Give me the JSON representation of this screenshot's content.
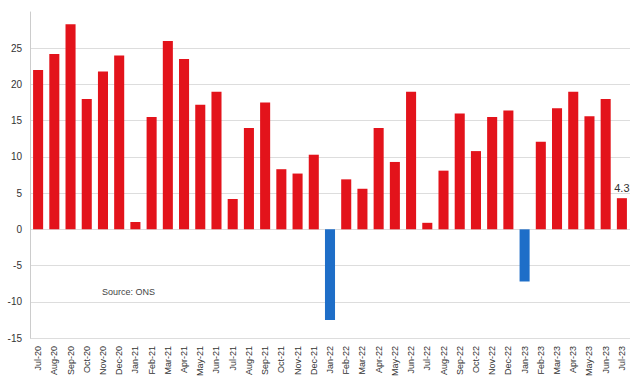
{
  "chart_data": {
    "type": "bar",
    "categories": [
      "Jul-20",
      "Aug-20",
      "Sep-20",
      "Oct-20",
      "Nov-20",
      "Dec-20",
      "Jan-21",
      "Feb-21",
      "Mar-21",
      "Apr-21",
      "May-21",
      "Jun-21",
      "Jul-21",
      "Aug-21",
      "Sep-21",
      "Oct-21",
      "Nov-21",
      "Dec-21",
      "Jan-22",
      "Feb-22",
      "Mar-22",
      "Apr-22",
      "May-22",
      "Jun-22",
      "Jul-22",
      "Aug-22",
      "Sep-22",
      "Oct-22",
      "Nov-22",
      "Dec-22",
      "Jan-23",
      "Feb-23",
      "Mar-23",
      "Apr-23",
      "May-23",
      "Jun-23",
      "Jul-23"
    ],
    "values": [
      22,
      24.2,
      28.3,
      18,
      21.8,
      24,
      1.0,
      15.5,
      26,
      23.5,
      17.2,
      19,
      4.2,
      14,
      17.5,
      8.3,
      7.7,
      10.3,
      -12.5,
      6.9,
      5.6,
      14,
      9.3,
      19,
      0.9,
      8.1,
      16,
      10.8,
      15.5,
      16.4,
      -7.2,
      12.1,
      16.7,
      19,
      15.6,
      18,
      4.3
    ],
    "colors": [
      "#e3131b",
      "#e3131b",
      "#e3131b",
      "#e3131b",
      "#e3131b",
      "#e3131b",
      "#e3131b",
      "#e3131b",
      "#e3131b",
      "#e3131b",
      "#e3131b",
      "#e3131b",
      "#e3131b",
      "#e3131b",
      "#e3131b",
      "#e3131b",
      "#e3131b",
      "#e3131b",
      "#1e6ec8",
      "#e3131b",
      "#e3131b",
      "#e3131b",
      "#e3131b",
      "#e3131b",
      "#e3131b",
      "#e3131b",
      "#e3131b",
      "#e3131b",
      "#e3131b",
      "#e3131b",
      "#1e6ec8",
      "#e3131b",
      "#e3131b",
      "#e3131b",
      "#e3131b",
      "#e3131b",
      "#e3131b"
    ],
    "ylim": [
      -15,
      30
    ],
    "yticks": [
      -15,
      -10,
      -5,
      0,
      5,
      10,
      15,
      20,
      25
    ],
    "grid": true,
    "annotations": [
      {
        "text": "4.3",
        "category": "Jul-23",
        "value": 4.3
      },
      {
        "text": "Source: ONS"
      }
    ]
  }
}
